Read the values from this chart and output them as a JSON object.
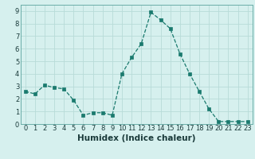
{
  "x": [
    0,
    1,
    2,
    3,
    4,
    5,
    6,
    7,
    8,
    9,
    10,
    11,
    12,
    13,
    14,
    15,
    16,
    17,
    18,
    19,
    20,
    21,
    22,
    23
  ],
  "y": [
    2.6,
    2.4,
    3.1,
    2.9,
    2.8,
    1.9,
    0.7,
    0.9,
    0.9,
    0.7,
    4.0,
    5.3,
    6.4,
    8.9,
    8.3,
    7.6,
    5.6,
    4.0,
    2.6,
    1.2,
    0.2,
    0.2,
    0.2,
    0.2
  ],
  "title": "",
  "xlabel": "Humidex (Indice chaleur)",
  "ylabel": "",
  "line_color": "#1a7a6e",
  "marker_color": "#1a7a6e",
  "bg_color": "#d6f0ee",
  "grid_color": "#b8dbd8",
  "xlim": [
    -0.5,
    23.5
  ],
  "ylim": [
    0,
    9.5
  ],
  "yticks": [
    0,
    1,
    2,
    3,
    4,
    5,
    6,
    7,
    8,
    9
  ],
  "xticks": [
    0,
    1,
    2,
    3,
    4,
    5,
    6,
    7,
    8,
    9,
    10,
    11,
    12,
    13,
    14,
    15,
    16,
    17,
    18,
    19,
    20,
    21,
    22,
    23
  ],
  "tick_label_fontsize": 6.0,
  "xlabel_fontsize": 7.5
}
